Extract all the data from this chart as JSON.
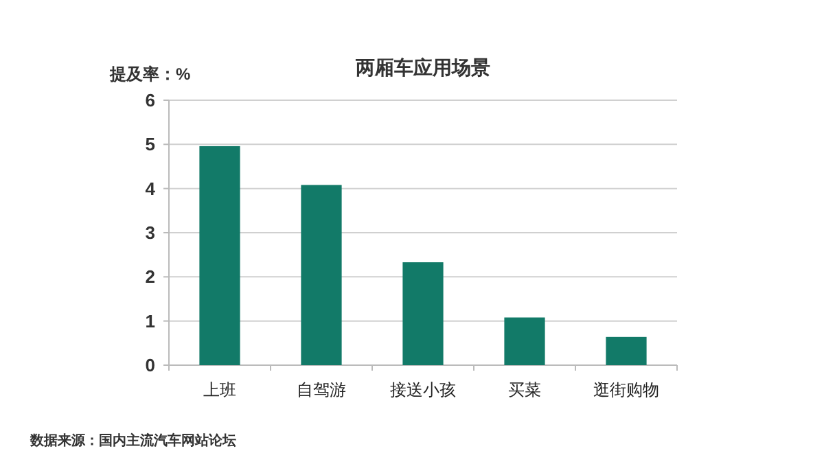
{
  "chart_data": {
    "type": "bar",
    "title": "两厢车应用场景",
    "ylabel": "提及率：%",
    "categories": [
      "上班",
      "自驾游",
      "接送小孩",
      "买菜",
      "逛街购物"
    ],
    "values": [
      4.96,
      4.08,
      2.33,
      1.08,
      0.64
    ],
    "color": "#127a68",
    "ylim": [
      0,
      6
    ],
    "yticks": [
      0,
      1,
      2,
      3,
      4,
      5,
      6
    ],
    "grid": "y",
    "annotations": [
      "数据来源：国内主流汽车网站论坛"
    ]
  }
}
